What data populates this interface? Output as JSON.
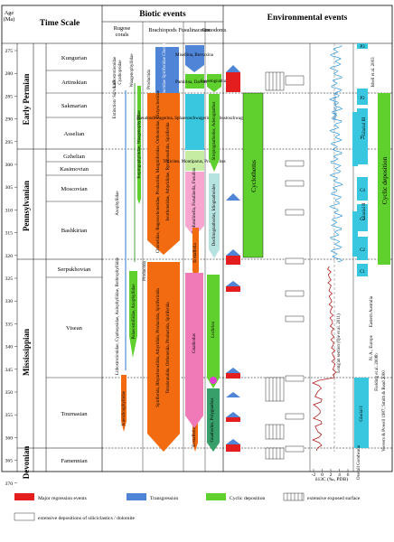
{
  "header": {
    "age_label": "Age (Ma)",
    "age_line1": "Age",
    "age_line2": "(Ma)",
    "time_scale": "Time Scale",
    "biotic": "Biotic events",
    "environmental": "Environmental events",
    "rugose": "Rugose corals",
    "rugose_line1": "Rugose",
    "rugose_line2": "corals",
    "brachiopods": "Brachiopods",
    "fusulinaceans": "Fusulinaceans",
    "conodonts": "Conodonts"
  },
  "age_ticks": [
    "275",
    "280",
    "285",
    "290",
    "295",
    "300",
    "305",
    "310",
    "315",
    "320",
    "325",
    "330",
    "335",
    "340",
    "345",
    "350",
    "355",
    "360",
    "365",
    "370"
  ],
  "periods": [
    "Early Permian",
    "Pennsylvanian",
    "Mississippian",
    "Devonian"
  ],
  "stages": [
    "Kungurian",
    "Artinskian",
    "Sakmarian",
    "Asselian",
    "Gzhelian",
    "Kasimovian",
    "Moscovian",
    "Bashkirian",
    "Serpukhovian",
    "Visean",
    "Tournasian",
    "Famennian"
  ],
  "rugose_labels": {
    "lithostrotionidae": "Lithostrotionidae",
    "cyathopsidae": "Cyathopsidae",
    "extinction": "Extinction/ Survival?",
    "waagenophyllidae": "Waagenophyllidae",
    "kepingophyllidae": "Kepingophyllidae, Waagenophyllidae",
    "axophyllidae": "Axophyllidae",
    "lithostrotionidae_list": "Lithostrotionidae, Cyathopsidae, Aulophyllidae, Bothrophyllidae",
    "palaeosmiliidae": "Palaeosmiliidae, Axophyllidae",
    "kueichouphyllidae": "Kueichouphyllidae"
  },
  "brach_labels": {
    "top": "Linoproductidae Spiriferidae Chonetidae",
    "productida_top": "Productida",
    "mid": "Chonetidae, Rugosochonetidae, Productida, Marginiferidae, Orthotetidae, Dictyoclostidae",
    "productida": "Productida",
    "gigantoproductidae": "Gigantoproductidae",
    "lower": "Spiriferida, Rhynchonellida, Athyridida, Productida, Spiriferinida",
    "upper": "Isorthotetidae, Athyrididae, Rynchonellida, Spiriferida",
    "base": "Tetrabratulida, Orthotetida, Productida, Spiriferida"
  },
  "fus_labels": {
    "misellina": "Misellina, Brevaxina",
    "pamirina": "Pamirina, Darvasites",
    "pseudosch": "Pseudoschwagerina, Sphaeroschwagerina, Robustoschwagerina",
    "triticites": "Triticites, Montiparus, Protriticites",
    "fusulinella": "Profusulinella, Fusulinella, Fusulina",
    "eostaff": "Eostaffella",
    "bottom": "Eostaffella, Plectogyra"
  },
  "cono_labels": {
    "sweetognathus": "Sweetognathus",
    "streptognathodus": "Streptognathodus, Adetognathus",
    "declinognathodus": "Declinognathodus, Idiognathoides",
    "gnathodus": "Gnathodus",
    "lochriea": "Lochriea",
    "siphonodella": "Siphonodella",
    "gnath2": "Gnathodus, Polygnathus"
  },
  "env_labels": {
    "cyclothems": "Cyclothems",
    "nanjing": "Naqing section",
    "longan": "Long'an section (Qie et al. 2011)",
    "delta": "δ13C (‰, PDB)",
    "delta_ticks": [
      "-2",
      "0",
      "2",
      "4",
      "6"
    ]
  },
  "glacial_labels": [
    "P3",
    "P2",
    "P1",
    "C4",
    "C3",
    "C2",
    "C1",
    "Glacial III",
    "Glacial II",
    "Glacial I"
  ],
  "right_refs": {
    "isbell": "Isbell et al. 2003",
    "cyclic": "Cyclic deposition",
    "eastern_aus": "Eastern Australia",
    "na_europe": "N. A., Europe",
    "fielding": "Fielding et al. 2008b",
    "veevers": "Veevers & Powell 1987; Smith & Read 2000",
    "gondwana": "Overall Gondwana"
  },
  "legend": {
    "major_regression": "Major regression events",
    "transgression": "Transgression",
    "cyclic": "Cyclic deposition",
    "exposed": "extensive exposed surface",
    "siliciclastics": "extensive depositions of siliciclastics / dolomite"
  },
  "colors": {
    "orange": "#f26b11",
    "blue": "#4f84d6",
    "green": "#5fd02d",
    "pink": "#f07ab8",
    "cyan": "#39c7e0",
    "light_green": "#c6eca4",
    "red": "#e41e1e",
    "teal": "#6fbfb0"
  }
}
